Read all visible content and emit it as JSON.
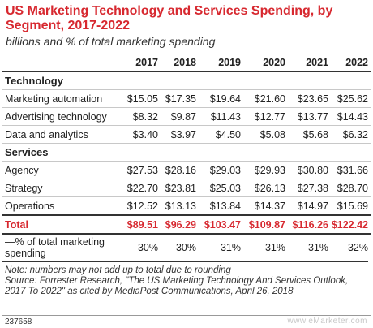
{
  "chart_data": {
    "type": "table",
    "title": "US Marketing Technology and Services Spending, by Segment, 2017-2022",
    "subtitle": "billions and % of total marketing spending",
    "columns": [
      "2017",
      "2018",
      "2019",
      "2020",
      "2021",
      "2022"
    ],
    "sections": [
      {
        "name": "Technology",
        "rows": [
          {
            "label": "Marketing automation",
            "values": [
              "$15.05",
              "$17.35",
              "$19.64",
              "$21.60",
              "$23.65",
              "$25.62"
            ]
          },
          {
            "label": "Advertising technology",
            "values": [
              "$8.32",
              "$9.87",
              "$11.43",
              "$12.77",
              "$13.77",
              "$14.43"
            ]
          },
          {
            "label": "Data and analytics",
            "values": [
              "$3.40",
              "$3.97",
              "$4.50",
              "$5.08",
              "$5.68",
              "$6.32"
            ]
          }
        ]
      },
      {
        "name": "Services",
        "rows": [
          {
            "label": "Agency",
            "values": [
              "$27.53",
              "$28.16",
              "$29.03",
              "$29.93",
              "$30.80",
              "$31.66"
            ]
          },
          {
            "label": "Strategy",
            "values": [
              "$22.70",
              "$23.81",
              "$25.03",
              "$26.13",
              "$27.38",
              "$28.70"
            ]
          },
          {
            "label": "Operations",
            "values": [
              "$12.52",
              "$13.13",
              "$13.84",
              "$14.37",
              "$14.97",
              "$15.69"
            ]
          }
        ]
      }
    ],
    "total": {
      "label": "Total",
      "values": [
        "$89.51",
        "$96.29",
        "$103.47",
        "$109.87",
        "$116.26",
        "$122.42"
      ]
    },
    "percent_row": {
      "label": "—% of total marketing spending",
      "values": [
        "30%",
        "30%",
        "31%",
        "31%",
        "31%",
        "32%"
      ]
    },
    "note": "Note: numbers may not add up to total due to rounding",
    "source": "Source: Forrester Research, \"The US Marketing Technology And Services Outlook, 2017 To 2022\" as cited by MediaPost Communications, April 26, 2018",
    "chart_id": "237658",
    "brand": "www.eMarketer.com",
    "colors": {
      "accent": "#d7282f",
      "text": "#222222",
      "rule": "#333333"
    }
  }
}
